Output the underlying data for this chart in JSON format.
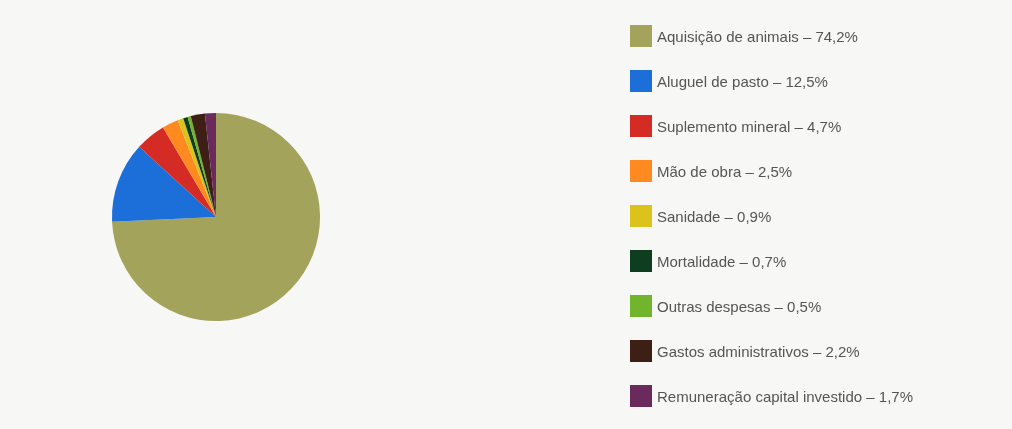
{
  "chart_data": {
    "type": "pie",
    "categories": [
      "Aquisição de animais",
      "Aluguel de pasto",
      "Suplemento mineral",
      "Mão de obra",
      "Sanidade",
      "Mortalidade",
      "Outras despesas",
      "Gastos administrativos",
      "Remuneração capital investido"
    ],
    "values": [
      74.2,
      12.5,
      4.7,
      2.5,
      0.9,
      0.7,
      0.5,
      2.2,
      1.7
    ],
    "value_labels": [
      "74,2%",
      "12,5%",
      "4,7%",
      "2,5%",
      "0,9%",
      "0,7%",
      "0,5%",
      "2,2%",
      "1,7%"
    ],
    "colors": [
      "#a3a35c",
      "#1c6fd8",
      "#d42b25",
      "#ff8a20",
      "#dcc31c",
      "#0f3d1f",
      "#70b52c",
      "#3d1f15",
      "#6a2b5c"
    ],
    "legend": "right"
  }
}
